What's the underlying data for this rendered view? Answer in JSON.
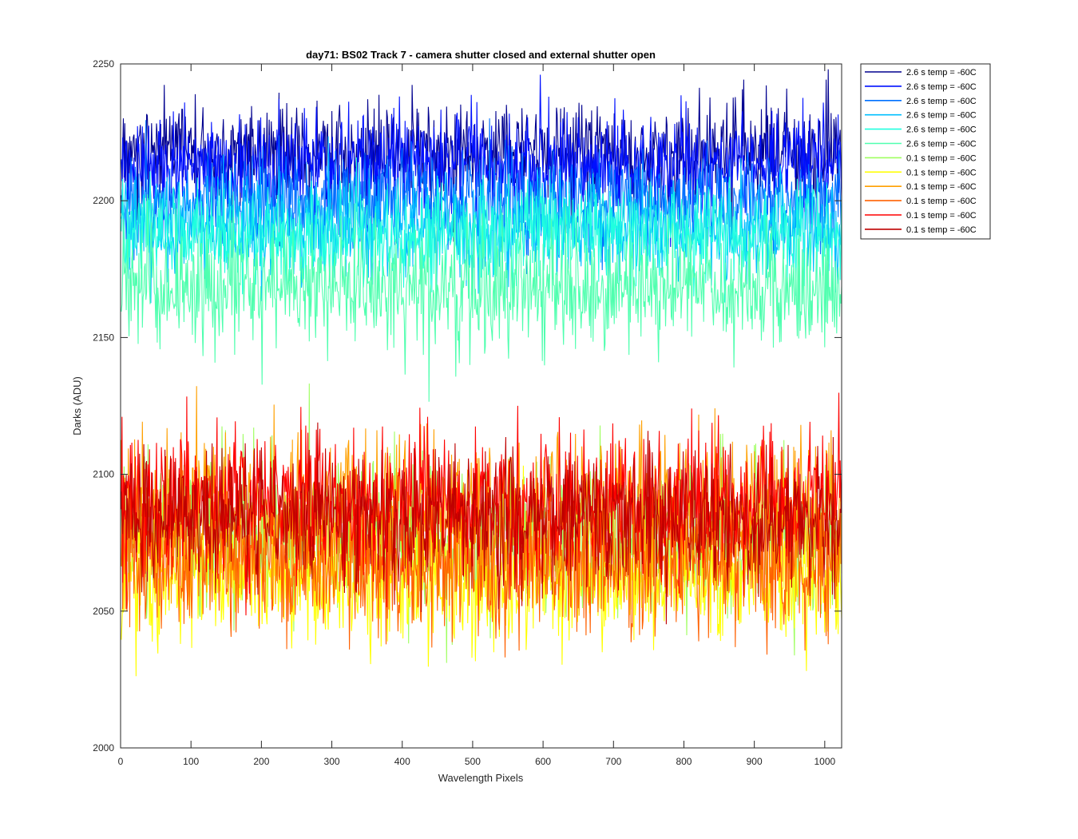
{
  "chart_data": {
    "type": "line",
    "title": "day71: BS02  Track 7 - camera shutter closed and external shutter open",
    "xlabel": "Wavelength Pixels",
    "ylabel": "Darks (ADU)",
    "xlim": [
      0,
      1024
    ],
    "ylim": [
      2000,
      2250
    ],
    "xticks": [
      0,
      100,
      200,
      300,
      400,
      500,
      600,
      700,
      800,
      900,
      1000
    ],
    "yticks": [
      2000,
      2050,
      2100,
      2150,
      2200,
      2250
    ],
    "grid": false,
    "legend_position": "outside-top-right",
    "x_points": 1024,
    "series": [
      {
        "name": "2.6 s temp = -60C",
        "color": "#00008f",
        "mean": 2218,
        "noise": 9
      },
      {
        "name": "2.6 s temp = -60C",
        "color": "#0010ff",
        "mean": 2213,
        "noise": 9
      },
      {
        "name": "2.6 s temp = -60C",
        "color": "#0070ff",
        "mean": 2200,
        "noise": 9
      },
      {
        "name": "2.6 s temp = -60C",
        "color": "#00bfff",
        "mean": 2190,
        "noise": 9
      },
      {
        "name": "2.6 s temp = -60C",
        "color": "#20ffdf",
        "mean": 2188,
        "noise": 9
      },
      {
        "name": "2.6 s temp = -60C",
        "color": "#50ffaf",
        "mean": 2168,
        "noise": 11
      },
      {
        "name": "0.1 s temp = -60C",
        "color": "#9fff60",
        "mean": 2078,
        "noise": 13
      },
      {
        "name": "0.1 s temp = -60C",
        "color": "#ffff00",
        "mean": 2062,
        "noise": 12
      },
      {
        "name": "0.1 s temp = -60C",
        "color": "#ffa000",
        "mean": 2085,
        "noise": 14
      },
      {
        "name": "0.1 s temp = -60C",
        "color": "#ff6000",
        "mean": 2068,
        "noise": 13
      },
      {
        "name": "0.1 s temp = -60C",
        "color": "#ff0000",
        "mean": 2090,
        "noise": 13
      },
      {
        "name": "0.1 s temp = -60C",
        "color": "#bf0000",
        "mean": 2085,
        "noise": 12
      }
    ]
  }
}
